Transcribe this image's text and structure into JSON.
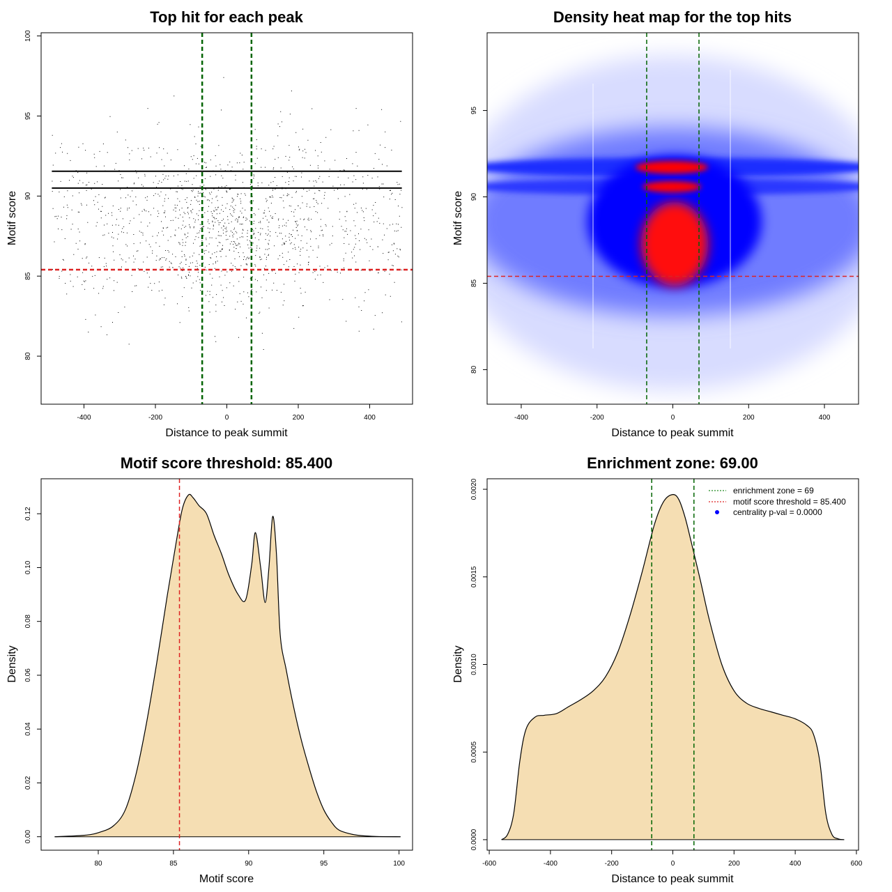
{
  "chart_data": [
    {
      "type": "scatter",
      "title": "Top hit for each peak",
      "xlabel": "Distance to peak summit",
      "ylabel": "Motif score",
      "xlim": [
        -520,
        520
      ],
      "ylim": [
        77,
        100.2
      ],
      "xticks": [
        -400,
        -200,
        0,
        200,
        400
      ],
      "xtick_labels": [
        "-400",
        "-200",
        "0",
        "200",
        "400"
      ],
      "yticks": [
        80,
        85,
        90,
        95,
        100
      ],
      "ytick_labels": [
        "80",
        "85",
        "90",
        "95",
        "100"
      ],
      "points_summary": {
        "x_range": [
          -490,
          490
        ],
        "y_range": [
          77.9,
          99.3
        ],
        "n_points_approx": 40000,
        "band_lines_y": [
          91.55,
          90.5
        ]
      },
      "vlines": [
        {
          "x": -69,
          "color": "#006400",
          "style": "dashed"
        },
        {
          "x": 69,
          "color": "#006400",
          "style": "dashed"
        }
      ],
      "hlines": [
        {
          "y": 85.4,
          "color": "#dd2222",
          "style": "dashed"
        }
      ]
    },
    {
      "type": "heatmap",
      "title": "Density heat map for the top hits",
      "xlabel": "Distance to peak summit",
      "ylabel": "Motif score",
      "xlim": [
        -490,
        490
      ],
      "ylim": [
        78,
        99.5
      ],
      "xticks": [
        -400,
        -200,
        0,
        200,
        400
      ],
      "xtick_labels": [
        "-400",
        "-200",
        "0",
        "200",
        "400"
      ],
      "yticks": [
        80,
        85,
        90,
        95
      ],
      "ytick_labels": [
        "80",
        "85",
        "90",
        "95"
      ],
      "colors": [
        "#ffffff",
        "#0000ff",
        "#ff0000"
      ],
      "hotspots": [
        {
          "x": 5,
          "y": 86.8,
          "intensity": "high"
        },
        {
          "x": 0,
          "y": 91.6,
          "intensity": "high"
        },
        {
          "x": 0,
          "y": 90.5,
          "intensity": "high"
        }
      ],
      "vlines": [
        {
          "x": -69,
          "color": "#006400",
          "style": "dashed"
        },
        {
          "x": 69,
          "color": "#006400",
          "style": "dashed"
        }
      ],
      "hlines": [
        {
          "y": 85.4,
          "color": "#dd2222",
          "style": "dashed"
        }
      ]
    },
    {
      "type": "area",
      "title": "Motif score threshold: 85.400",
      "xlabel": "Motif score",
      "ylabel": "Density",
      "xlim": [
        76.2,
        100.9
      ],
      "ylim": [
        -0.005,
        0.133
      ],
      "xticks": [
        80,
        85,
        90,
        95,
        100
      ],
      "xtick_labels": [
        "80",
        "85",
        "90",
        "95",
        "100"
      ],
      "yticks": [
        0,
        0.02,
        0.04,
        0.06,
        0.08,
        0.1,
        0.12
      ],
      "ytick_labels": [
        "0.00",
        "0.02",
        "0.04",
        "0.06",
        "0.08",
        "0.10",
        "0.12"
      ],
      "fill": "#f5deb3",
      "x": [
        77.1,
        79,
        80,
        81,
        81.8,
        82.5,
        83.2,
        83.9,
        84.6,
        85.2,
        85.6,
        86,
        86.3,
        86.7,
        87.2,
        87.7,
        88.2,
        88.7,
        89.3,
        89.8,
        90.2,
        90.45,
        90.8,
        91.1,
        91.35,
        91.6,
        91.85,
        92.1,
        92.5,
        93,
        93.5,
        94,
        94.5,
        95,
        95.5,
        96,
        96.8,
        97.5,
        98.5,
        100.1
      ],
      "values": [
        0,
        0.0005,
        0.0015,
        0.004,
        0.01,
        0.023,
        0.042,
        0.065,
        0.09,
        0.11,
        0.122,
        0.127,
        0.126,
        0.123,
        0.12,
        0.112,
        0.105,
        0.097,
        0.09,
        0.088,
        0.101,
        0.113,
        0.1,
        0.087,
        0.1,
        0.119,
        0.105,
        0.075,
        0.062,
        0.048,
        0.036,
        0.026,
        0.017,
        0.01,
        0.0055,
        0.0025,
        0.001,
        0.0004,
        0.0001,
        0
      ],
      "vlines": [
        {
          "x": 85.4,
          "color": "#dd2222",
          "style": "dashed"
        }
      ]
    },
    {
      "type": "area",
      "title": "Enrichment zone: 69.00",
      "xlabel": "Distance to peak summit",
      "ylabel": "Density",
      "xlim": [
        -607,
        607
      ],
      "ylim": [
        -6e-05,
        0.00206
      ],
      "xticks": [
        -600,
        -400,
        -200,
        0,
        200,
        400,
        600
      ],
      "xtick_labels": [
        "-600",
        "-400",
        "-200",
        "0",
        "200",
        "400",
        "600"
      ],
      "yticks": [
        0,
        0.0005,
        0.001,
        0.0015,
        0.002
      ],
      "ytick_labels": [
        "0.0000",
        "0.0005",
        "0.0010",
        "0.0015",
        "0.0020"
      ],
      "fill": "#f5deb3",
      "x": [
        -560,
        -540,
        -520,
        -500,
        -480,
        -450,
        -420,
        -380,
        -340,
        -300,
        -260,
        -220,
        -180,
        -140,
        -100,
        -60,
        -30,
        0,
        20,
        40,
        60,
        90,
        120,
        160,
        200,
        240,
        280,
        320,
        360,
        400,
        440,
        460,
        480,
        500,
        520,
        540,
        560
      ],
      "values": [
        0,
        3e-05,
        0.00015,
        0.00045,
        0.00063,
        0.0007,
        0.00071,
        0.00072,
        0.00076,
        0.0008,
        0.00085,
        0.00093,
        0.00107,
        0.00128,
        0.00153,
        0.0018,
        0.00193,
        0.00197,
        0.00194,
        0.00184,
        0.0017,
        0.00148,
        0.00125,
        0.001,
        0.00085,
        0.00078,
        0.00075,
        0.00073,
        0.00071,
        0.00069,
        0.00065,
        0.0006,
        0.00045,
        0.00015,
        3e-05,
        5e-06,
        0
      ],
      "vlines": [
        {
          "x": -69,
          "color": "#006400",
          "style": "dashed"
        },
        {
          "x": 69,
          "color": "#006400",
          "style": "dashed"
        }
      ],
      "legend": {
        "placement": "top-right",
        "entries": [
          {
            "label": "enrichment zone = 69",
            "color": "#228b22",
            "kind": "dotted-line"
          },
          {
            "label": "motif score threshold = 85.400",
            "color": "#dd2222",
            "kind": "dotted-line"
          },
          {
            "label": "centrality p-val = 0.0000",
            "color": "#0000ff",
            "kind": "point"
          }
        ]
      }
    }
  ]
}
